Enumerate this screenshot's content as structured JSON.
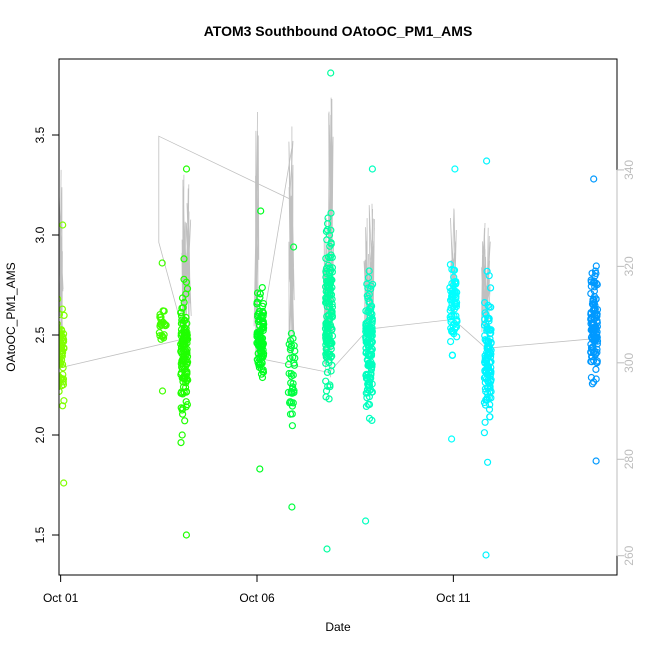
{
  "chart_data": {
    "type": "scatter",
    "title": "ATOM3 Southbound OAtoOC_PM1_AMS",
    "xlabel": "Date",
    "ylabel": "OAtoOC_PM1_AMS",
    "x_axis": {
      "type": "date",
      "range": [
        "2016-09-30T23:00",
        "2016-10-15T04:00"
      ],
      "ticks": [
        "Oct 01",
        "Oct 06",
        "Oct 11"
      ],
      "tick_dates": [
        "2016-10-01",
        "2016-10-06",
        "2016-10-11"
      ]
    },
    "y_axis": {
      "range": [
        1.3,
        3.88
      ],
      "ticks": [
        "1.5",
        "2.0",
        "2.5",
        "3.0",
        "3.5"
      ]
    },
    "y2_axis": {
      "range": [
        256,
        363
      ],
      "ticks": [
        "260",
        "280",
        "300",
        "320",
        "340"
      ],
      "color": "#bdbdbd"
    },
    "grid": false,
    "legend": "none",
    "color_gradient": [
      "#80ff00",
      "#00ff40",
      "#00ffbf",
      "#00ffff",
      "#0099ff"
    ],
    "series": [
      {
        "mark": "circle",
        "clusters": [
          {
            "date": "2016-10-01T00:00",
            "ymin": 1.76,
            "ymax": 3.05,
            "n": 70,
            "color": "#80ff00"
          },
          {
            "date": "2016-10-03T14:30",
            "ymin": 2.22,
            "ymax": 2.86,
            "n": 25,
            "color": "#40ff00"
          },
          {
            "date": "2016-10-04T03:30",
            "ymin": 1.5,
            "ymax": 3.33,
            "n": 130,
            "color": "#20ff00"
          },
          {
            "date": "2016-10-06T02:00",
            "ymin": 1.83,
            "ymax": 3.12,
            "n": 100,
            "color": "#00ff20"
          },
          {
            "date": "2016-10-06T21:00",
            "ymin": 1.64,
            "ymax": 2.94,
            "n": 40,
            "color": "#00ff40"
          },
          {
            "date": "2016-10-07T20:00",
            "ymin": 1.43,
            "ymax": 3.81,
            "n": 150,
            "color": "#00ff9f"
          },
          {
            "date": "2016-10-08T20:30",
            "ymin": 1.57,
            "ymax": 3.33,
            "n": 140,
            "color": "#00ffbf"
          },
          {
            "date": "2016-10-11T00:00",
            "ymin": 1.98,
            "ymax": 3.33,
            "n": 70,
            "color": "#00ffff"
          },
          {
            "date": "2016-10-11T21:00",
            "ymin": 1.4,
            "ymax": 3.37,
            "n": 120,
            "color": "#00f4ff"
          },
          {
            "date": "2016-10-14T14:00",
            "ymin": 1.87,
            "ymax": 3.28,
            "n": 120,
            "color": "#0099ff"
          }
        ]
      },
      {
        "mark": "line",
        "axis": "right",
        "color": "#c0c0c0",
        "points": [
          [
            "2016-10-01T00:00",
            299
          ],
          [
            "2016-10-04T04:00",
            305
          ],
          [
            "2016-10-03T12:00",
            325
          ],
          [
            "2016-10-03T12:00",
            347
          ],
          [
            "2016-10-06T20:00",
            334
          ],
          [
            "2016-10-06T22:00",
            346
          ],
          [
            "2016-10-06T00:00",
            301
          ],
          [
            "2016-10-07T20:00",
            298
          ],
          [
            "2016-10-08T20:00",
            307
          ],
          [
            "2016-10-11T00:00",
            309
          ],
          [
            "2016-10-11T20:00",
            303
          ],
          [
            "2016-10-14T14:00",
            305
          ]
        ],
        "spikes": [
          {
            "date": "2016-10-01T00:00",
            "base": 302,
            "peak": 340
          },
          {
            "date": "2016-10-04T03:00",
            "base": 305,
            "peak": 339
          },
          {
            "date": "2016-10-04T06:00",
            "base": 303,
            "peak": 337
          },
          {
            "date": "2016-10-06T00:00",
            "base": 301,
            "peak": 352
          },
          {
            "date": "2016-10-06T21:00",
            "base": 299,
            "peak": 349
          },
          {
            "date": "2016-10-07T18:00",
            "base": 298,
            "peak": 330
          },
          {
            "date": "2016-10-07T21:00",
            "base": 297,
            "peak": 355
          },
          {
            "date": "2016-10-08T19:00",
            "base": 306,
            "peak": 330
          },
          {
            "date": "2016-10-08T22:00",
            "base": 305,
            "peak": 333
          },
          {
            "date": "2016-10-11T00:00",
            "base": 309,
            "peak": 332
          },
          {
            "date": "2016-10-11T19:00",
            "base": 306,
            "peak": 329
          },
          {
            "date": "2016-10-11T21:00",
            "base": 304,
            "peak": 328
          }
        ]
      }
    ]
  }
}
